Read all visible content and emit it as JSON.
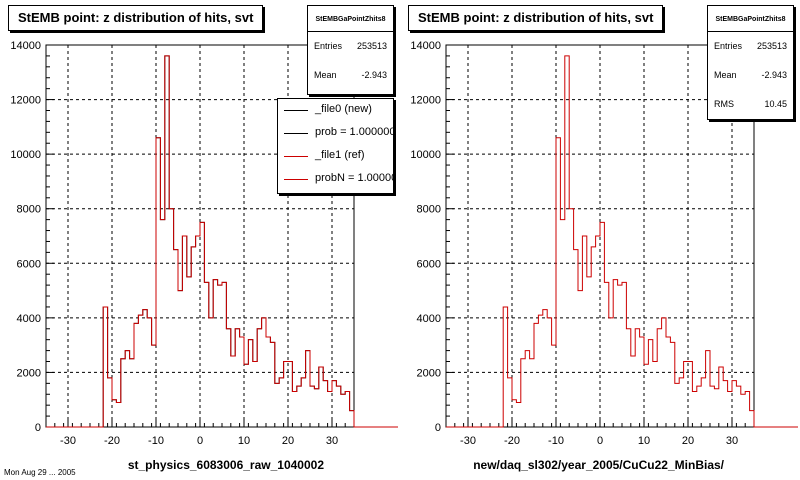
{
  "colors": {
    "ref_line": "#cc0000",
    "new_line": "#000000",
    "grid": "#000000"
  },
  "footer_text": "Mon Aug 29 ... 2005",
  "pads": [
    {
      "title": "StEMB point: z distribution of hits, svt",
      "stats": {
        "name": "StEMBGaPointZhits8",
        "rows": [
          {
            "label": "Entries",
            "value": "253513"
          },
          {
            "label": "Mean",
            "value": "-2.943"
          }
        ]
      },
      "legend": [
        {
          "label": "_file0 (new)",
          "color": "#000000"
        },
        {
          "label": "prob = 1.000000",
          "color": "#000000"
        },
        {
          "label": "_file1 (ref)",
          "color": "#cc0000"
        },
        {
          "label": "probN = 1.000000",
          "color": "#cc0000"
        }
      ]
    },
    {
      "title": "StEMB point: z distribution of hits, svt",
      "stats": {
        "name": "StEMBGaPointZhits8",
        "rows": [
          {
            "label": "Entries",
            "value": "253513"
          },
          {
            "label": "Mean",
            "value": "-2.943"
          },
          {
            "label": "RMS",
            "value": "10.45"
          }
        ]
      }
    }
  ],
  "chart_data": [
    {
      "type": "histogram",
      "title": "StEMB point: z distribution of hits, svt",
      "xlabel": "st_physics_6083006_raw_1040002",
      "ylabel": "",
      "xlim": [
        -35,
        35
      ],
      "ylim": [
        0,
        14000
      ],
      "xticks": [
        -30,
        -20,
        -10,
        0,
        10,
        20,
        30
      ],
      "yticks": [
        0,
        2000,
        4000,
        6000,
        8000,
        10000,
        12000,
        14000
      ],
      "grid": true,
      "bin_edges_start": -35,
      "bin_width": 1,
      "series": [
        {
          "name": "_file0 (new)",
          "values": [
            0,
            0,
            0,
            0,
            0,
            0,
            0,
            0,
            0,
            0,
            0,
            0,
            0,
            4400,
            1800,
            1000,
            900,
            2500,
            2800,
            2500,
            3800,
            4100,
            4300,
            4000,
            3000,
            10600,
            7600,
            13600,
            8000,
            6500,
            5000,
            7000,
            5500,
            6600,
            7000,
            7500,
            5300,
            4000,
            5400,
            5200,
            5300,
            3600,
            2600,
            3600,
            3300,
            2300,
            3200,
            2400,
            3600,
            4000,
            3300,
            3100,
            1600,
            1800,
            2400,
            2400,
            1300,
            1500,
            1800,
            2800,
            1500,
            1400,
            2200,
            1700,
            1300,
            1700,
            1500,
            1200,
            1300,
            600,
            0,
            0,
            0,
            0,
            0,
            0,
            0,
            0,
            0,
            0
          ]
        },
        {
          "name": "_file1 (ref)",
          "values": [
            0,
            0,
            0,
            0,
            0,
            0,
            0,
            0,
            0,
            0,
            0,
            0,
            0,
            4400,
            1800,
            1000,
            900,
            2500,
            2800,
            2500,
            3800,
            4100,
            4300,
            4000,
            3000,
            10600,
            7600,
            13600,
            8000,
            6500,
            5000,
            7000,
            5500,
            6600,
            7000,
            7500,
            5300,
            4000,
            5400,
            5200,
            5300,
            3600,
            2600,
            3600,
            3300,
            2300,
            3200,
            2400,
            3600,
            4000,
            3300,
            3100,
            1600,
            1800,
            2400,
            2400,
            1300,
            1500,
            1800,
            2800,
            1500,
            1400,
            2200,
            1700,
            1300,
            1700,
            1500,
            1200,
            1300,
            600,
            0,
            0,
            0,
            0,
            0,
            0,
            0,
            0,
            0,
            0
          ]
        }
      ]
    },
    {
      "type": "histogram",
      "title": "StEMB point: z distribution of hits, svt",
      "xlabel": "new/daq_sl302/year_2005/CuCu22_MinBias/",
      "ylabel": "",
      "xlim": [
        -35,
        35
      ],
      "ylim": [
        0,
        14000
      ],
      "xticks": [
        -30,
        -20,
        -10,
        0,
        10,
        20,
        30
      ],
      "yticks": [
        0,
        2000,
        4000,
        6000,
        8000,
        10000,
        12000,
        14000
      ],
      "grid": true,
      "bin_edges_start": -35,
      "bin_width": 1,
      "series": [
        {
          "name": "_file1 (ref)",
          "values": [
            0,
            0,
            0,
            0,
            0,
            0,
            0,
            0,
            0,
            0,
            0,
            0,
            0,
            4400,
            1800,
            1000,
            900,
            2500,
            2800,
            2500,
            3800,
            4100,
            4300,
            4000,
            3000,
            10600,
            7600,
            13600,
            8000,
            6500,
            5000,
            7000,
            5500,
            6600,
            7000,
            7500,
            5300,
            4000,
            5400,
            5200,
            5300,
            3600,
            2600,
            3600,
            3300,
            2300,
            3200,
            2400,
            3600,
            4000,
            3300,
            3100,
            1600,
            1800,
            2400,
            2400,
            1300,
            1500,
            1800,
            2800,
            1500,
            1400,
            2200,
            1700,
            1300,
            1700,
            1500,
            1200,
            1300,
            600,
            0,
            0,
            0,
            0,
            0,
            0,
            0,
            0,
            0,
            0
          ]
        }
      ]
    }
  ]
}
